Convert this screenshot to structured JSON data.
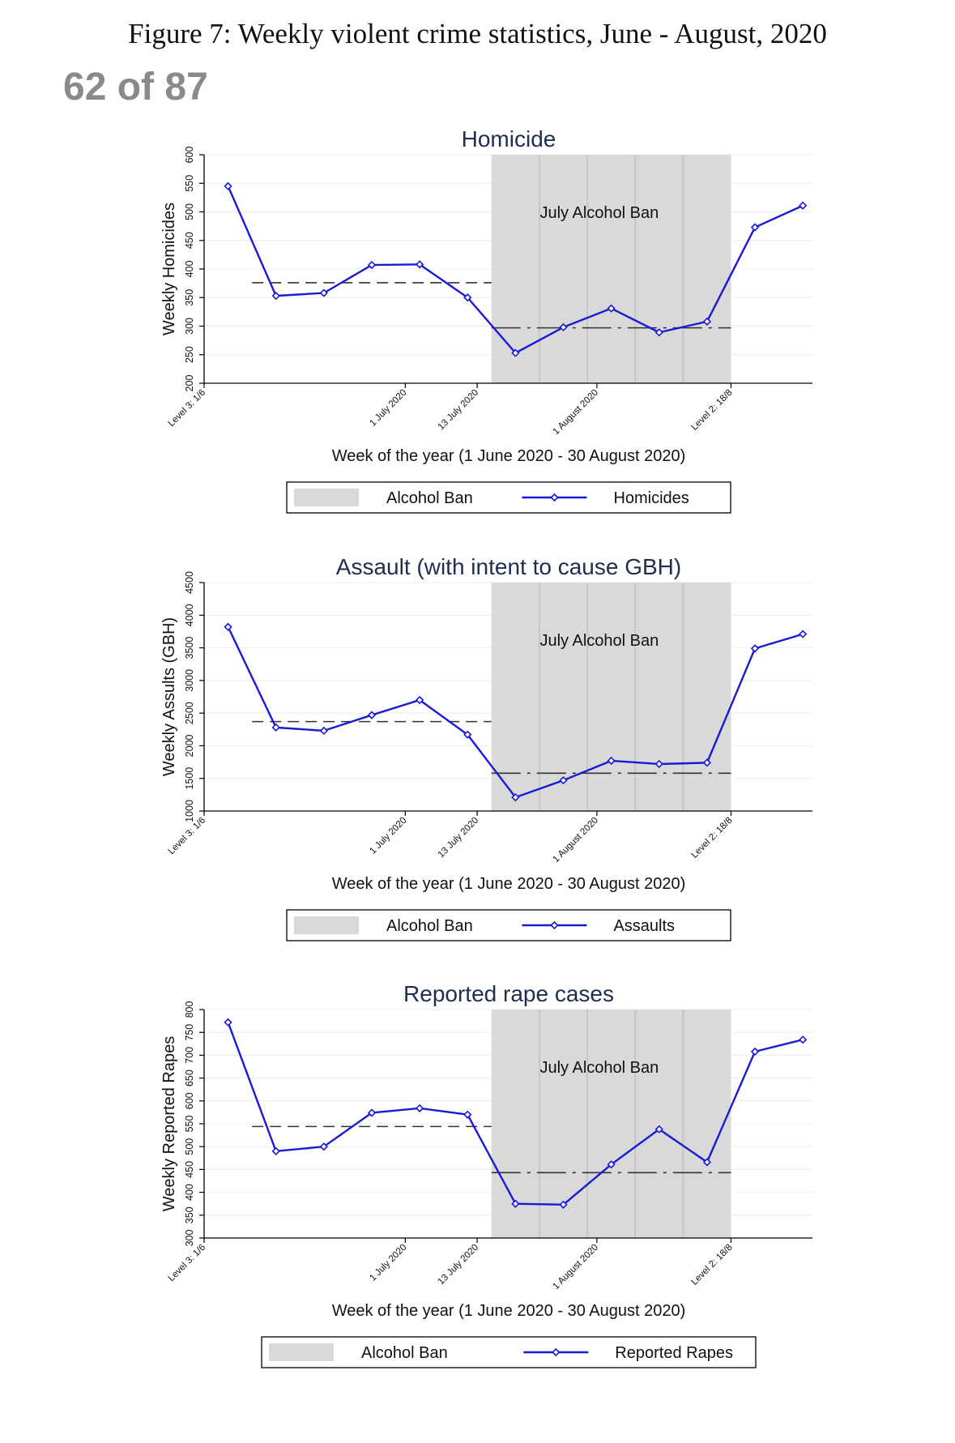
{
  "figure_title": "Figure 7: Weekly violent crime statistics, June - August, 2020",
  "page_counter": "62 of 87",
  "colors": {
    "line": "#1a1ad6",
    "band": "#d9d9d9",
    "title": "#1f2d4e"
  },
  "chart_data": [
    {
      "type": "line",
      "title": "Homicide",
      "ylabel": "Weekly Homicides",
      "xlabel": "Week of the year (1 June 2020 - 30 August 2020)",
      "ylim": [
        200,
        600
      ],
      "yticks": [
        200,
        250,
        300,
        350,
        400,
        450,
        500,
        550,
        600
      ],
      "xlim": [
        -0.5,
        12.2
      ],
      "x": [
        0,
        1,
        2,
        3,
        4,
        5,
        6,
        7,
        8,
        9,
        10,
        11,
        12
      ],
      "values": [
        545,
        353,
        358,
        407,
        408,
        350,
        253,
        298,
        331,
        289,
        308,
        473,
        511
      ],
      "xticks": [
        {
          "label": "Level 3: 1/6",
          "x": -0.5
        },
        {
          "label": "1 July 2020",
          "x": 3.7
        },
        {
          "label": "13 July 2020",
          "x": 5.2
        },
        {
          "label": "1 August 2020",
          "x": 7.7
        },
        {
          "label": "Level 2: 18/8",
          "x": 10.5
        }
      ],
      "band": {
        "from": 5.5,
        "to": 10.5,
        "label": "July Alcohol Ban",
        "dividers": [
          6.5,
          7.5,
          8.5,
          9.5
        ]
      },
      "pre_mean": {
        "value": 376,
        "from": 0.5,
        "to": 5.5
      },
      "ban_mean": {
        "value": 297,
        "from": 5.5,
        "to": 10.5
      },
      "legend": {
        "band_label": "Alcohol Ban",
        "series_label": "Homicides"
      }
    },
    {
      "type": "line",
      "title": "Assault (with intent to cause GBH)",
      "ylabel": "Weekly Assults (GBH)",
      "xlabel": "Week of the year (1 June 2020 - 30 August 2020)",
      "ylim": [
        1000,
        4500
      ],
      "yticks": [
        1000,
        1500,
        2000,
        2500,
        3000,
        3500,
        4000,
        4500
      ],
      "xlim": [
        -0.5,
        12.2
      ],
      "x": [
        0,
        1,
        2,
        3,
        4,
        5,
        6,
        7,
        8,
        9,
        10,
        11,
        12
      ],
      "values": [
        3820,
        2280,
        2230,
        2470,
        2700,
        2170,
        1210,
        1470,
        1770,
        1720,
        1740,
        3490,
        3710
      ],
      "xticks": [
        {
          "label": "Level 3: 1/6",
          "x": -0.5
        },
        {
          "label": "1 July 2020",
          "x": 3.7
        },
        {
          "label": "13 July 2020",
          "x": 5.2
        },
        {
          "label": "1 August 2020",
          "x": 7.7
        },
        {
          "label": "Level 2: 18/8",
          "x": 10.5
        }
      ],
      "band": {
        "from": 5.5,
        "to": 10.5,
        "label": "July Alcohol Ban",
        "dividers": [
          6.5,
          7.5,
          8.5,
          9.5
        ]
      },
      "pre_mean": {
        "value": 2370,
        "from": 0.5,
        "to": 5.5
      },
      "ban_mean": {
        "value": 1580,
        "from": 5.5,
        "to": 10.5
      },
      "legend": {
        "band_label": "Alcohol Ban",
        "series_label": "Assaults"
      }
    },
    {
      "type": "line",
      "title": "Reported rape cases",
      "ylabel": "Weekly Reported Rapes",
      "xlabel": "Week of the year (1 June 2020 - 30 August 2020)",
      "ylim": [
        300,
        800
      ],
      "yticks": [
        300,
        350,
        400,
        450,
        500,
        550,
        600,
        650,
        700,
        750,
        800
      ],
      "xlim": [
        -0.5,
        12.2
      ],
      "x": [
        0,
        1,
        2,
        3,
        4,
        5,
        6,
        7,
        8,
        9,
        10,
        11,
        12
      ],
      "values": [
        772,
        490,
        500,
        574,
        584,
        570,
        375,
        373,
        461,
        538,
        466,
        708,
        734
      ],
      "xticks": [
        {
          "label": "Level 3: 1/6",
          "x": -0.5
        },
        {
          "label": "1 July 2020",
          "x": 3.7
        },
        {
          "label": "13 July 2020",
          "x": 5.2
        },
        {
          "label": "1 August 2020",
          "x": 7.7
        },
        {
          "label": "Level 2: 18/8",
          "x": 10.5
        }
      ],
      "band": {
        "from": 5.5,
        "to": 10.5,
        "label": "July Alcohol Ban",
        "dividers": [
          6.5,
          7.5,
          8.5,
          9.5
        ]
      },
      "pre_mean": {
        "value": 544,
        "from": 0.5,
        "to": 5.5
      },
      "ban_mean": {
        "value": 443,
        "from": 5.5,
        "to": 10.5
      },
      "legend": {
        "band_label": "Alcohol Ban",
        "series_label": "Reported Rapes"
      }
    }
  ]
}
